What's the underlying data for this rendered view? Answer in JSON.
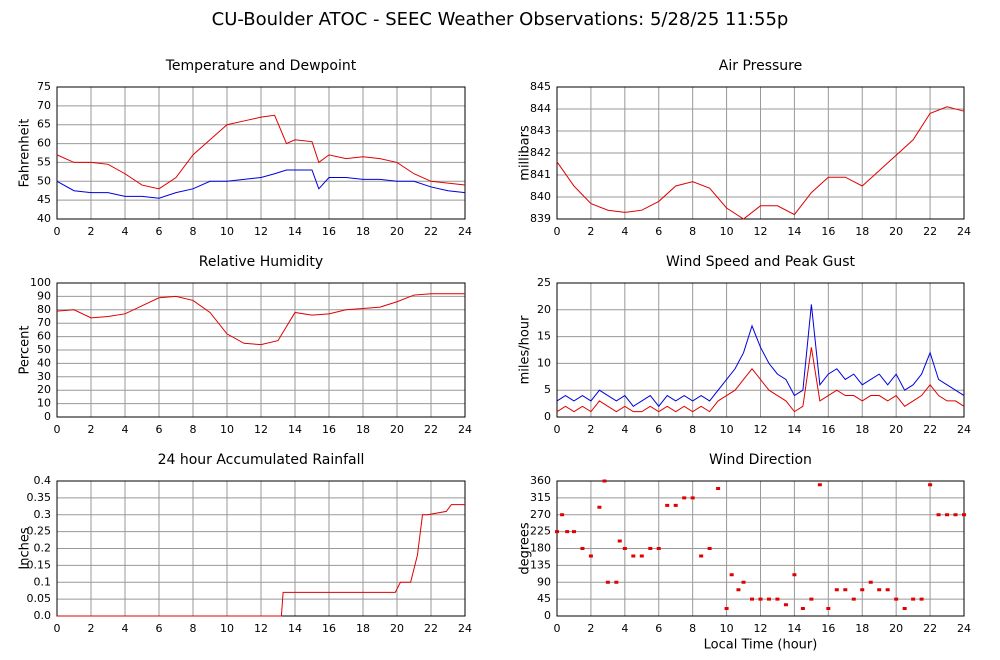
{
  "title": "CU-Boulder ATOC - SEEC Weather Observations: 5/28/25 11:55p",
  "chart_data": [
    {
      "type": "line",
      "title": "Temperature and Dewpoint",
      "ylabel": "Fahrenheit",
      "x": [
        0,
        1,
        2,
        3,
        4,
        5,
        6,
        7,
        8,
        9,
        10,
        11,
        12,
        12.8,
        13.5,
        14,
        15,
        15.4,
        16,
        17,
        18,
        19,
        20,
        21,
        22,
        23,
        24
      ],
      "series": [
        {
          "color": "#e00000",
          "values": [
            57,
            55,
            55,
            54.5,
            52,
            49,
            48,
            51,
            57,
            61,
            65,
            66,
            67,
            67.5,
            60,
            61,
            60.5,
            55,
            57,
            56,
            56.5,
            56,
            55,
            52,
            50,
            49.5,
            49
          ]
        },
        {
          "color": "#0000e0",
          "values": [
            50,
            47.5,
            47,
            47,
            46,
            46,
            45.5,
            47,
            48,
            50,
            50,
            50.5,
            51,
            52,
            53,
            53,
            53,
            48,
            51,
            51,
            50.5,
            50.5,
            50,
            50,
            48.5,
            47.5,
            47
          ]
        }
      ],
      "xlim": [
        0,
        24
      ],
      "xticks": [
        0,
        2,
        4,
        6,
        8,
        10,
        12,
        14,
        16,
        18,
        20,
        22,
        24
      ],
      "ylim": [
        40,
        75
      ],
      "yticks": [
        40,
        45,
        50,
        55,
        60,
        65,
        70,
        75
      ],
      "grid": true
    },
    {
      "type": "line",
      "title": "Air Pressure",
      "ylabel": "millibars",
      "x": [
        0,
        1,
        2,
        3,
        4,
        5,
        6,
        7,
        8,
        9,
        10,
        11,
        12,
        13,
        14,
        15,
        16,
        17,
        18,
        19,
        20,
        21,
        22,
        23,
        24
      ],
      "series": [
        {
          "color": "#e00000",
          "values": [
            841.6,
            840.5,
            839.7,
            839.4,
            839.3,
            839.4,
            839.8,
            840.5,
            840.7,
            840.4,
            839.5,
            839.0,
            839.6,
            839.6,
            839.2,
            840.2,
            840.9,
            840.9,
            840.5,
            841.2,
            841.9,
            842.6,
            843.8,
            844.1,
            843.9
          ]
        }
      ],
      "xlim": [
        0,
        24
      ],
      "xticks": [
        0,
        2,
        4,
        6,
        8,
        10,
        12,
        14,
        16,
        18,
        20,
        22,
        24
      ],
      "ylim": [
        839,
        845
      ],
      "yticks": [
        839,
        840,
        841,
        842,
        843,
        844,
        845
      ],
      "grid": true
    },
    {
      "type": "line",
      "title": "Relative Humidity",
      "ylabel": "Percent",
      "x": [
        0,
        1,
        2,
        3,
        4,
        5,
        6,
        7,
        8,
        9,
        10,
        11,
        12,
        13,
        14,
        15,
        16,
        17,
        18,
        19,
        20,
        21,
        22,
        23,
        24
      ],
      "series": [
        {
          "color": "#e00000",
          "values": [
            79,
            80,
            74,
            75,
            77,
            83,
            89,
            90,
            87,
            78,
            62,
            55,
            54,
            57,
            78,
            76,
            77,
            80,
            81,
            82,
            86,
            91,
            92,
            92,
            92
          ]
        }
      ],
      "xlim": [
        0,
        24
      ],
      "xticks": [
        0,
        2,
        4,
        6,
        8,
        10,
        12,
        14,
        16,
        18,
        20,
        22,
        24
      ],
      "ylim": [
        0,
        100
      ],
      "yticks": [
        0,
        10,
        20,
        30,
        40,
        50,
        60,
        70,
        80,
        90,
        100
      ],
      "grid": true
    },
    {
      "type": "line",
      "title": "Wind Speed and Peak Gust",
      "ylabel": "miles/hour",
      "x": [
        0,
        0.5,
        1,
        1.5,
        2,
        2.5,
        3,
        3.5,
        4,
        4.5,
        5,
        5.5,
        6,
        6.5,
        7,
        7.5,
        8,
        8.5,
        9,
        9.5,
        10,
        10.5,
        11,
        11.5,
        12,
        12.5,
        13,
        13.5,
        14,
        14.5,
        15,
        15.5,
        16,
        16.5,
        17,
        17.5,
        18,
        18.5,
        19,
        19.5,
        20,
        20.5,
        21,
        21.5,
        22,
        22.5,
        23,
        23.5,
        24
      ],
      "series": [
        {
          "color": "#0000e0",
          "values": [
            3,
            4,
            3,
            4,
            3,
            5,
            4,
            3,
            4,
            2,
            3,
            4,
            2,
            4,
            3,
            4,
            3,
            4,
            3,
            5,
            7,
            9,
            12,
            17,
            13,
            10,
            8,
            7,
            4,
            5,
            21,
            6,
            8,
            9,
            7,
            8,
            6,
            7,
            8,
            6,
            8,
            5,
            6,
            8,
            12,
            7,
            6,
            5,
            4
          ]
        },
        {
          "color": "#e00000",
          "values": [
            1,
            2,
            1,
            2,
            1,
            3,
            2,
            1,
            2,
            1,
            1,
            2,
            1,
            2,
            1,
            2,
            1,
            2,
            1,
            3,
            4,
            5,
            7,
            9,
            7,
            5,
            4,
            3,
            1,
            2,
            13,
            3,
            4,
            5,
            4,
            4,
            3,
            4,
            4,
            3,
            4,
            2,
            3,
            4,
            6,
            4,
            3,
            3,
            2
          ]
        }
      ],
      "xlim": [
        0,
        24
      ],
      "xticks": [
        0,
        2,
        4,
        6,
        8,
        10,
        12,
        14,
        16,
        18,
        20,
        22,
        24
      ],
      "ylim": [
        0,
        25
      ],
      "yticks": [
        0,
        5,
        10,
        15,
        20,
        25
      ],
      "grid": true
    },
    {
      "type": "line",
      "title": "24 hour Accumulated Rainfall",
      "ylabel": "Inches",
      "x": [
        0,
        13.2,
        13.3,
        19.9,
        20.2,
        20.8,
        21.2,
        21.5,
        21.8,
        22.9,
        23.2,
        24
      ],
      "series": [
        {
          "color": "#e00000",
          "values": [
            0,
            0,
            0.07,
            0.07,
            0.1,
            0.1,
            0.18,
            0.3,
            0.3,
            0.31,
            0.33,
            0.33
          ]
        }
      ],
      "xlim": [
        0,
        24
      ],
      "xticks": [
        0,
        2,
        4,
        6,
        8,
        10,
        12,
        14,
        16,
        18,
        20,
        22,
        24
      ],
      "ylim": [
        0,
        0.4
      ],
      "yticks": [
        {
          "value": 0,
          "label": "0.0"
        },
        0.05,
        0.1,
        0.15,
        0.2,
        0.25,
        0.3,
        0.35,
        0.4
      ],
      "grid": true
    },
    {
      "type": "scatter",
      "title": "Wind Direction",
      "ylabel": "degrees",
      "xlabel": "Local Time (hour)",
      "x": [
        0,
        0.3,
        0.6,
        1,
        1.5,
        2,
        2.5,
        2.8,
        3,
        3.5,
        3.7,
        4,
        4.5,
        5,
        5.5,
        6,
        6.5,
        7,
        7.5,
        8,
        8.5,
        9,
        9.5,
        10,
        10.3,
        10.7,
        11,
        11.5,
        12,
        12.5,
        13,
        13.5,
        14,
        14.5,
        15,
        15.5,
        16,
        16.5,
        17,
        17.5,
        18,
        18.5,
        19,
        19.5,
        20,
        20.5,
        21,
        21.5,
        22,
        22.5,
        23,
        23.5,
        24
      ],
      "values": [
        225,
        270,
        225,
        225,
        180,
        160,
        290,
        360,
        90,
        90,
        200,
        180,
        160,
        160,
        180,
        180,
        295,
        295,
        315,
        315,
        160,
        180,
        340,
        20,
        110,
        70,
        90,
        45,
        45,
        45,
        45,
        30,
        110,
        20,
        45,
        350,
        20,
        70,
        70,
        45,
        70,
        90,
        70,
        70,
        45,
        20,
        45,
        45,
        350,
        270,
        270,
        270,
        270
      ],
      "color": "#e00000",
      "xlim": [
        0,
        24
      ],
      "xticks": [
        0,
        2,
        4,
        6,
        8,
        10,
        12,
        14,
        16,
        18,
        20,
        22,
        24
      ],
      "ylim": [
        0,
        360
      ],
      "yticks": [
        0,
        45,
        90,
        135,
        180,
        225,
        270,
        315,
        360
      ],
      "grid": true
    }
  ]
}
